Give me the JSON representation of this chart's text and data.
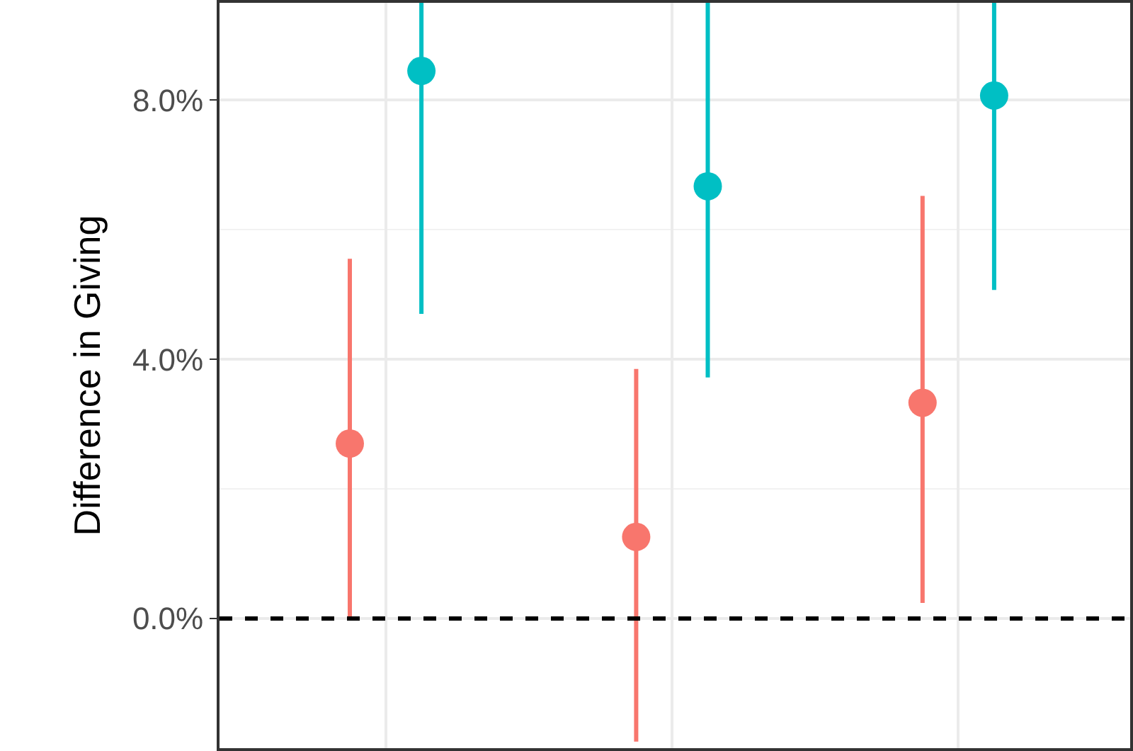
{
  "chart_data": {
    "type": "scatter",
    "ylabel": "Difference in Giving",
    "categories": [
      null,
      null,
      null
    ],
    "series": [
      {
        "color": "#f8766d",
        "values": [
          2.7,
          1.26,
          3.33
        ],
        "errors": [
          [
            0.0,
            5.55
          ],
          [
            -1.9,
            3.85
          ],
          [
            0.24,
            6.52
          ]
        ]
      },
      {
        "color": "#00bfc4",
        "values": [
          8.45,
          6.67,
          8.07
        ],
        "errors": [
          [
            4.7,
            9.5
          ],
          [
            3.72,
            9.5
          ],
          [
            5.07,
            9.5
          ]
        ]
      }
    ],
    "ylim": [
      -2.0,
      9.5
    ],
    "yticks": [
      {
        "value": 0,
        "label": "0.0%"
      },
      {
        "value": 2,
        "label": null
      },
      {
        "value": 4,
        "label": "4.0%"
      },
      {
        "value": 6,
        "label": null
      },
      {
        "value": 8,
        "label": "8.0%"
      }
    ],
    "ref_lines": [
      {
        "axis": "y",
        "value": 0,
        "color": "#000000",
        "line_style": "dashed"
      }
    ],
    "grid": true,
    "marker": "circle",
    "tick_labels": "y"
  }
}
